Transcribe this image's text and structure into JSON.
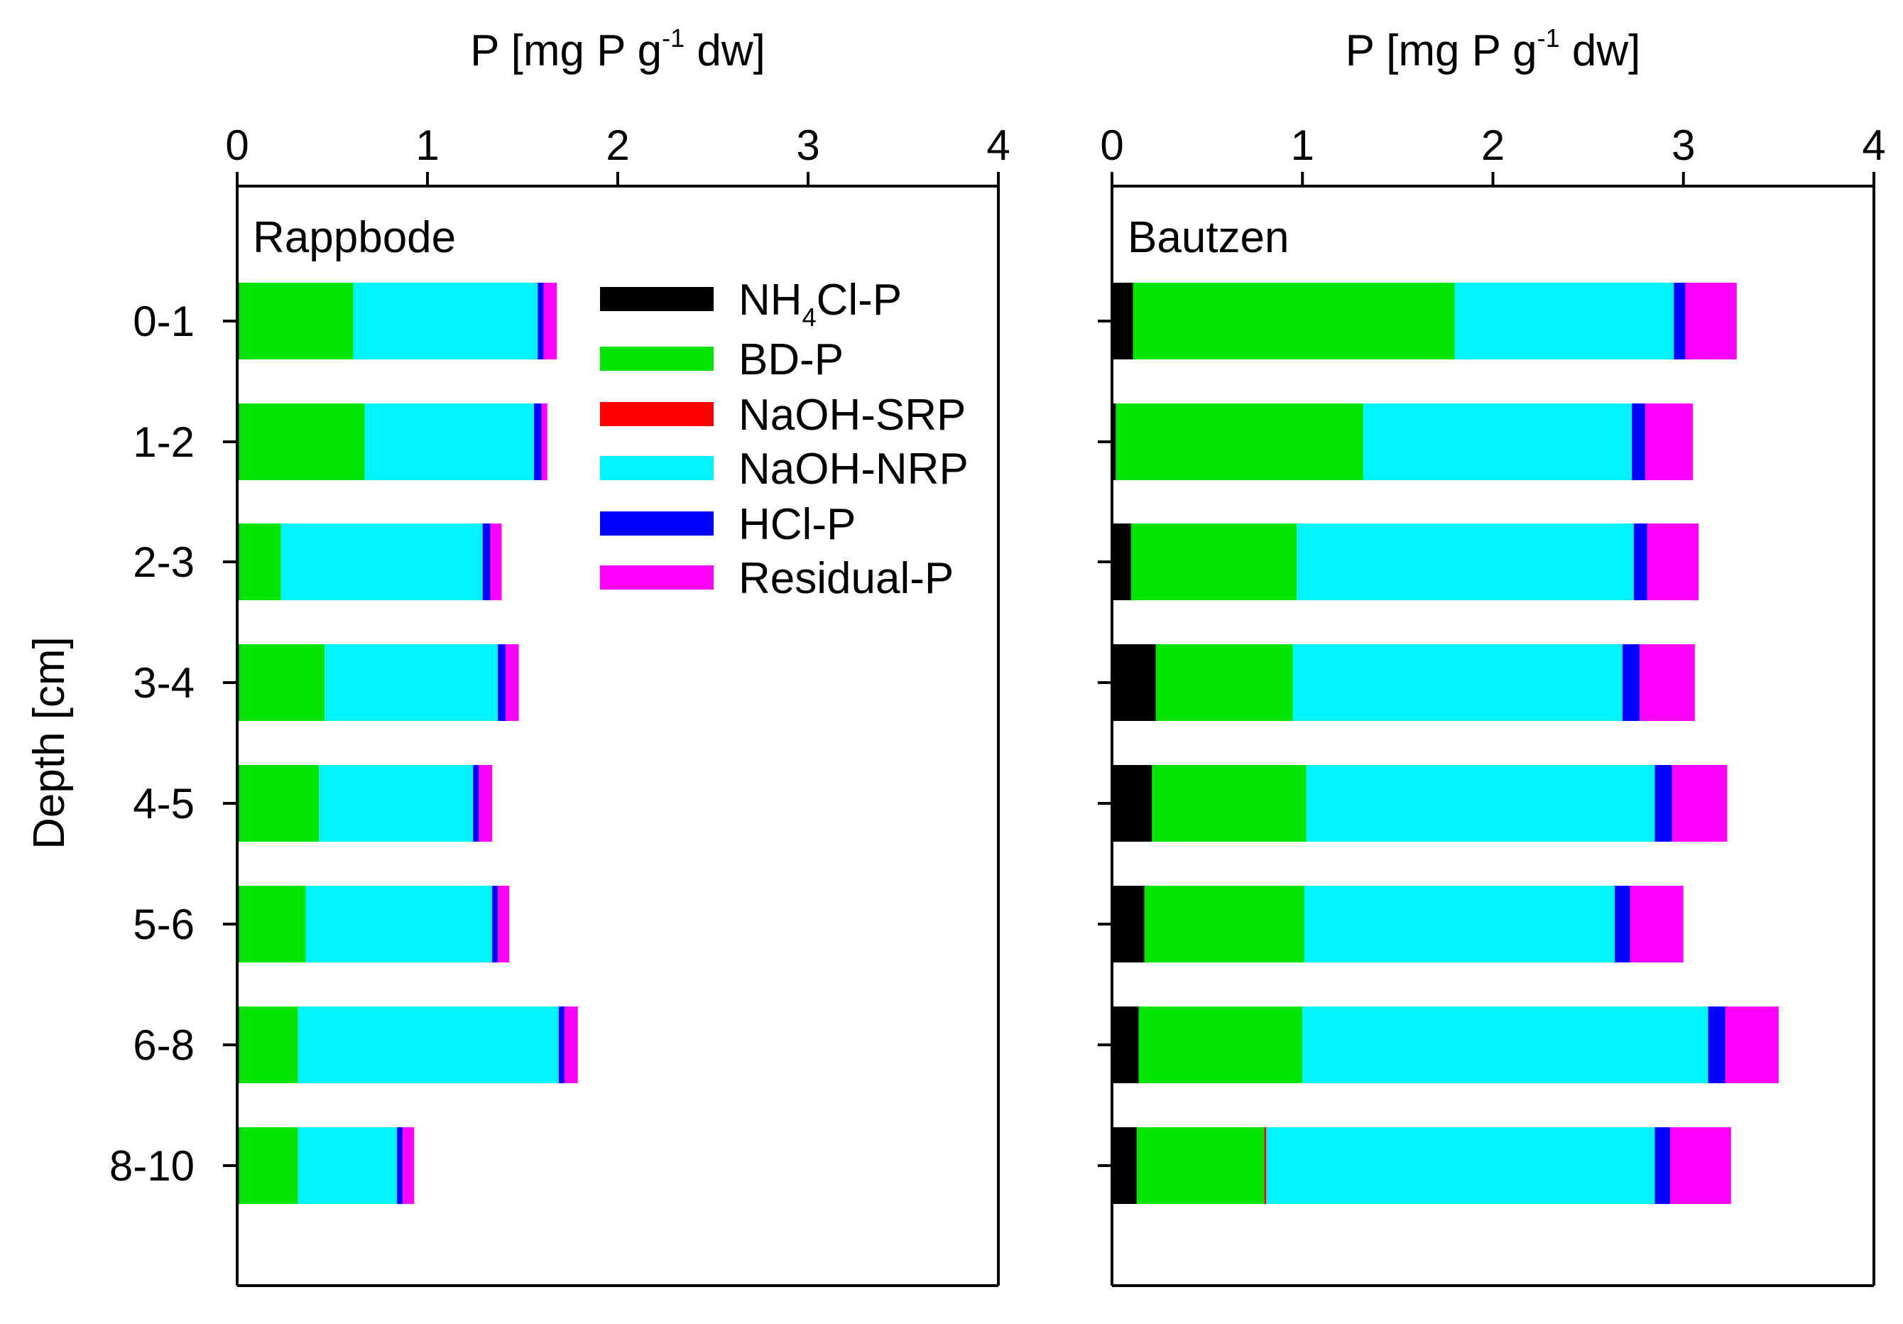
{
  "chart_data": {
    "type": "bar",
    "orientation": "horizontal",
    "stacked": true,
    "ylabel": "Depth [cm]",
    "categories": [
      "0-1",
      "1-2",
      "2-3",
      "3-4",
      "4-5",
      "5-6",
      "6-8",
      "8-10"
    ],
    "xlim": [
      0,
      4
    ],
    "xticks": [
      "0",
      "1",
      "2",
      "3",
      "4"
    ],
    "xlabel": {
      "main": "P [mg P g",
      "superscript": "-1",
      "tail": " dw]"
    },
    "legend": {
      "position": "top-center",
      "entries": [
        {
          "key": "NH4Cl-P",
          "label_main": "NH",
          "label_sub": "4",
          "label_tail": "Cl-P",
          "color": "#000000"
        },
        {
          "key": "BD-P",
          "label_main": "BD-P",
          "label_sub": "",
          "label_tail": "",
          "color": "#00e400"
        },
        {
          "key": "NaOH-SRP",
          "label_main": "NaOH-SRP",
          "label_sub": "",
          "label_tail": "",
          "color": "#ff0000"
        },
        {
          "key": "NaOH-NRP",
          "label_main": "NaOH-NRP",
          "label_sub": "",
          "label_tail": "",
          "color": "#00f4ff"
        },
        {
          "key": "HCl-P",
          "label_main": "HCl-P",
          "label_sub": "",
          "label_tail": "",
          "color": "#0000ff"
        },
        {
          "key": "Residual-P",
          "label_main": "Residual-P",
          "label_sub": "",
          "label_tail": "",
          "color": "#ff00ff"
        }
      ]
    },
    "panels": [
      {
        "name": "Rappbode",
        "series": [
          {
            "name": "NH4Cl-P",
            "values": [
              0.01,
              0.01,
              0.01,
              0.01,
              0.01,
              0.01,
              0.01,
              0.01
            ]
          },
          {
            "name": "BD-P",
            "values": [
              0.6,
              0.66,
              0.22,
              0.45,
              0.42,
              0.35,
              0.31,
              0.31
            ]
          },
          {
            "name": "NaOH-SRP",
            "values": [
              0.0,
              0.0,
              0.0,
              0.0,
              0.0,
              0.0,
              0.0,
              0.0
            ]
          },
          {
            "name": "NaOH-NRP",
            "values": [
              0.97,
              0.89,
              1.06,
              0.91,
              0.81,
              0.98,
              1.37,
              0.52
            ]
          },
          {
            "name": "HCl-P",
            "values": [
              0.03,
              0.04,
              0.04,
              0.04,
              0.03,
              0.03,
              0.03,
              0.03
            ]
          },
          {
            "name": "Residual-P",
            "values": [
              0.07,
              0.03,
              0.06,
              0.07,
              0.07,
              0.06,
              0.07,
              0.06
            ]
          }
        ]
      },
      {
        "name": "Bautzen",
        "series": [
          {
            "name": "NH4Cl-P",
            "values": [
              0.11,
              0.02,
              0.1,
              0.23,
              0.21,
              0.17,
              0.14,
              0.13
            ]
          },
          {
            "name": "BD-P",
            "values": [
              1.69,
              1.3,
              0.87,
              0.72,
              0.81,
              0.84,
              0.86,
              0.67
            ]
          },
          {
            "name": "NaOH-SRP",
            "values": [
              0.0,
              0.0,
              0.0,
              0.0,
              0.0,
              0.0,
              0.0,
              0.01
            ]
          },
          {
            "name": "NaOH-NRP",
            "values": [
              1.15,
              1.41,
              1.77,
              1.73,
              1.83,
              1.63,
              2.13,
              2.04
            ]
          },
          {
            "name": "HCl-P",
            "values": [
              0.06,
              0.07,
              0.07,
              0.09,
              0.09,
              0.08,
              0.09,
              0.08
            ]
          },
          {
            "name": "Residual-P",
            "values": [
              0.27,
              0.25,
              0.27,
              0.29,
              0.29,
              0.28,
              0.28,
              0.32
            ]
          }
        ]
      }
    ]
  }
}
